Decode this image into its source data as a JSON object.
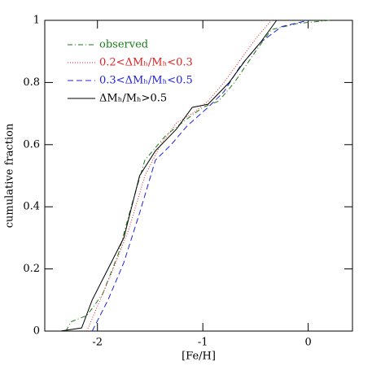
{
  "chart_data": {
    "type": "line",
    "xlabel": "[Fe/H]",
    "ylabel": "cumulative fraction",
    "xlim": [
      -2.5,
      0.42
    ],
    "ylim": [
      0,
      1
    ],
    "xticks": [
      -2,
      -1,
      0
    ],
    "yticks": [
      0,
      0.2,
      0.4,
      0.6,
      0.8,
      1
    ],
    "legend": "upper left",
    "series": [
      {
        "name": "observed",
        "color": "#1a7a1a",
        "dash": "6,3,1,3",
        "x": [
          -2.3,
          -2.25,
          -2.1,
          -1.95,
          -1.8,
          -1.68,
          -1.55,
          -1.35,
          -1.2,
          -1.0,
          -0.85,
          -0.7,
          -0.5,
          -0.35,
          -0.1,
          0.2
        ],
        "values": [
          0,
          0.03,
          0.05,
          0.12,
          0.25,
          0.4,
          0.55,
          0.63,
          0.67,
          0.72,
          0.74,
          0.8,
          0.9,
          0.97,
          0.99,
          1.0
        ]
      },
      {
        "name": "0.2<ΔMₕ/Mₕ<0.3",
        "color": "#e02020",
        "dash": "1,2",
        "x": [
          -2.1,
          -2.0,
          -1.85,
          -1.7,
          -1.55,
          -1.4,
          -1.25,
          -1.1,
          -0.95,
          -0.8,
          -0.65,
          -0.5,
          -0.35
        ],
        "values": [
          0,
          0.08,
          0.2,
          0.33,
          0.5,
          0.6,
          0.67,
          0.7,
          0.74,
          0.8,
          0.87,
          0.94,
          1.0
        ]
      },
      {
        "name": "0.3<ΔMₕ/Mₕ<0.5",
        "color": "#2020e0",
        "dash": "7,4",
        "x": [
          -2.05,
          -1.9,
          -1.75,
          -1.6,
          -1.45,
          -1.3,
          -1.15,
          -0.95,
          -0.8,
          -0.65,
          -0.45,
          -0.25,
          0.0
        ],
        "values": [
          0,
          0.1,
          0.22,
          0.38,
          0.55,
          0.6,
          0.66,
          0.72,
          0.77,
          0.85,
          0.93,
          0.98,
          1.0
        ]
      },
      {
        "name": "ΔMₕ/Mₕ>0.5",
        "color": "#000000",
        "dash": "none",
        "x": [
          -2.35,
          -2.15,
          -2.05,
          -1.9,
          -1.75,
          -1.6,
          -1.45,
          -1.25,
          -1.1,
          -0.95,
          -0.75,
          -0.6,
          -0.45,
          -0.3
        ],
        "values": [
          0,
          0.01,
          0.1,
          0.2,
          0.3,
          0.5,
          0.58,
          0.65,
          0.72,
          0.73,
          0.8,
          0.87,
          0.93,
          1.0
        ]
      }
    ]
  }
}
